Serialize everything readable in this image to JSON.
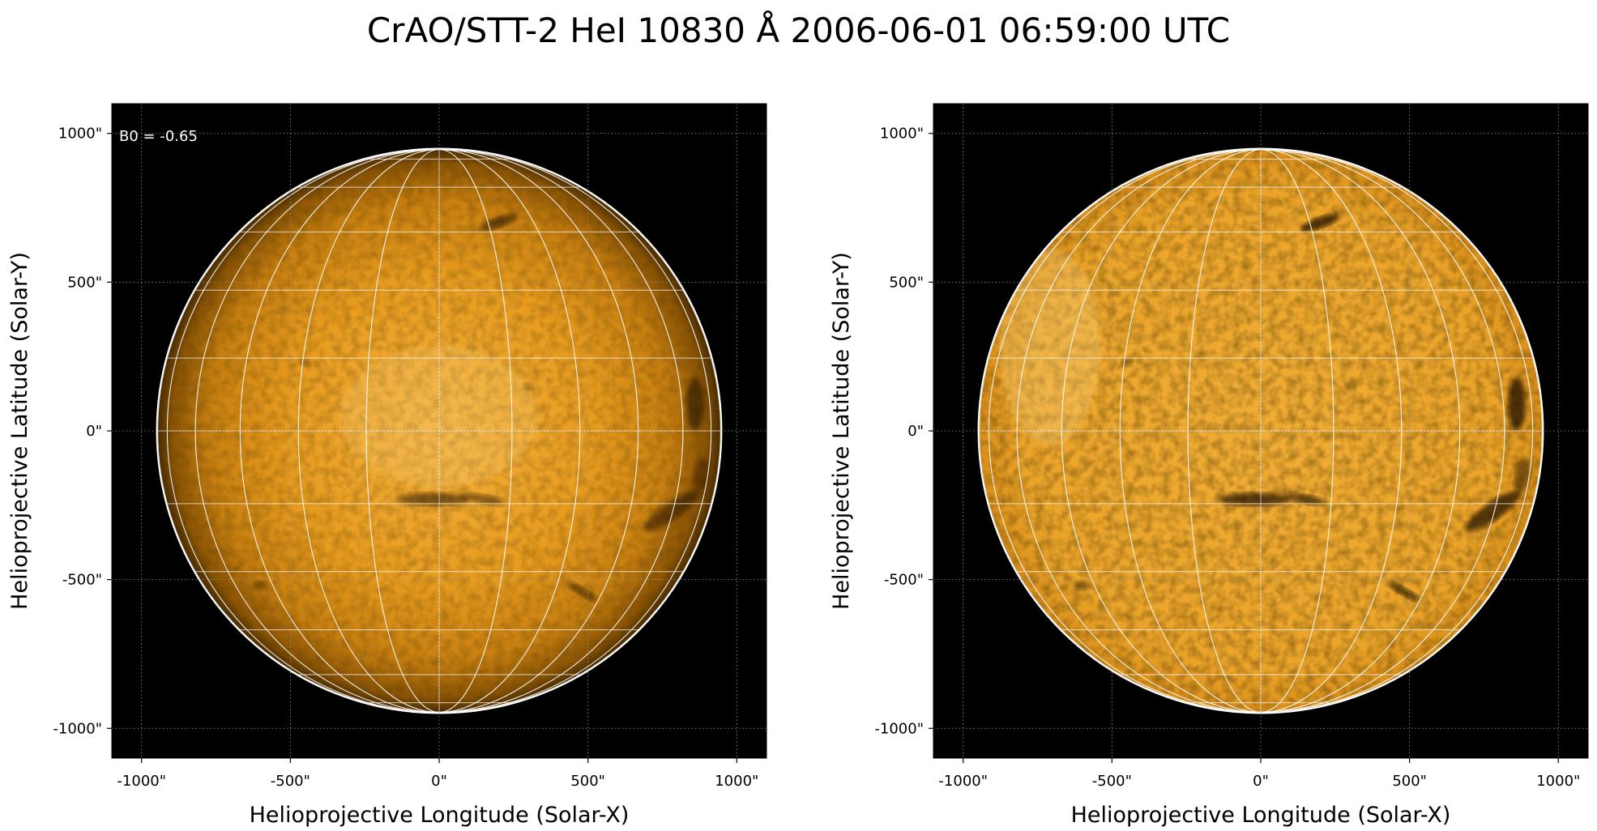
{
  "title": "CrAO/STT-2 HeI 10830 Å 2006-06-01 06:59:00 UTC",
  "colors": {
    "background": "#000000",
    "disk_center": "#f2ab33",
    "disk_mid": "#e69a1c",
    "disk_limb": "#5a3602",
    "limb_circle": "#ffffff",
    "grid": "#ffffff",
    "dark_feature": "#1a0e02"
  },
  "panels": [
    {
      "name": "left",
      "note": "B0 = -0.65",
      "xlabel": "Helioprojective Longitude (Solar-X)",
      "ylabel": "Helioprojective Latitude (Solar-Y)",
      "xticks": [
        "-1000\"",
        "-500\"",
        "0\"",
        "500\"",
        "1000\""
      ],
      "yticks": [
        "1000\"",
        "500\"",
        "0\"",
        "-500\"",
        "-1000\""
      ],
      "tick_values": [
        -1000,
        -500,
        0,
        500,
        1000
      ],
      "axis_range_arcsec": [
        -1100,
        1100
      ],
      "solar_radius_arcsec": 946,
      "limb_darkened": true
    },
    {
      "name": "right",
      "note": "",
      "xlabel": "Helioprojective Longitude (Solar-X)",
      "ylabel": "Helioprojective Latitude (Solar-Y)",
      "xticks": [
        "-1000\"",
        "-500\"",
        "0\"",
        "500\"",
        "1000\""
      ],
      "yticks": [
        "1000\"",
        "500\"",
        "0\"",
        "-500\"",
        "-1000\""
      ],
      "tick_values": [
        -1000,
        -500,
        0,
        500,
        1000
      ],
      "axis_range_arcsec": [
        -1100,
        1100
      ],
      "solar_radius_arcsec": 946,
      "limb_darkened": false
    }
  ]
}
